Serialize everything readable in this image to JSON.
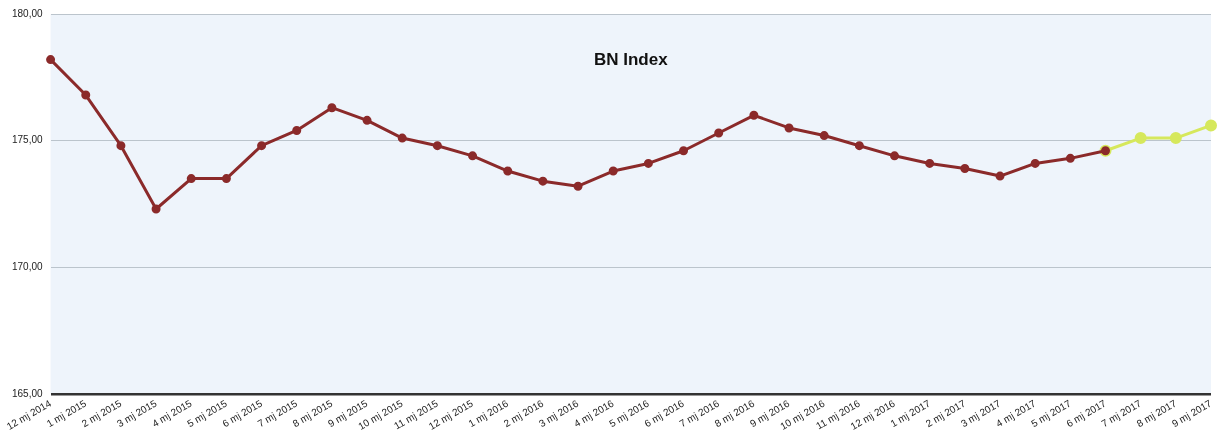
{
  "chart_data": {
    "type": "line",
    "title": "BN Index",
    "categories": [
      "12 mj 2014",
      "1 mj 2015",
      "2 mj 2015",
      "3 mj 2015",
      "4 mj 2015",
      "5 mj 2015",
      "6 mj 2015",
      "7 mj 2015",
      "8 mj 2015",
      "9 mj 2015",
      "10 mj 2015",
      "11 mj 2015",
      "12 mj 2015",
      "1 mj 2016",
      "2 mj 2016",
      "3 mj 2016",
      "4 mj 2016",
      "5 mj 2016",
      "6 mj 2016",
      "7 mj 2016",
      "8 mj 2016",
      "9 mj 2016",
      "10 mj 2016",
      "11 mj 2016",
      "12 mj 2016",
      "1 mj 2017",
      "2 mj 2017",
      "3 mj 2017",
      "4 mj 2017",
      "5 mj 2017",
      "6 mj 2017",
      "7 mj 2017",
      "8 mj 2017",
      "9 mj 2017"
    ],
    "series": [
      {
        "color": "#8b2a2a",
        "values": [
          178.2,
          176.8,
          174.8,
          172.3,
          173.5,
          173.5,
          174.8,
          175.4,
          176.3,
          175.8,
          175.1,
          174.8,
          174.4,
          173.8,
          173.4,
          173.2,
          173.8,
          174.1,
          174.6,
          175.3,
          176.0,
          175.5,
          175.2,
          174.8,
          174.4,
          174.1,
          173.9,
          173.6,
          174.1,
          174.3,
          174.6,
          null,
          null,
          null
        ]
      },
      {
        "color": "#d6e85c",
        "values": [
          null,
          null,
          null,
          null,
          null,
          null,
          null,
          null,
          null,
          null,
          null,
          null,
          null,
          null,
          null,
          null,
          null,
          null,
          null,
          null,
          null,
          null,
          null,
          null,
          null,
          null,
          null,
          null,
          null,
          null,
          174.6,
          175.1,
          175.1,
          175.6
        ]
      }
    ],
    "ylim": [
      165,
      180
    ],
    "yticks": [
      {
        "value": 165,
        "label": "165,00"
      },
      {
        "value": 170,
        "label": "170,00"
      },
      {
        "value": 175,
        "label": "175,00"
      },
      {
        "value": 180,
        "label": "180,00"
      }
    ],
    "grid": "y",
    "legend": false,
    "marker": "circle",
    "line_style": "solid"
  }
}
